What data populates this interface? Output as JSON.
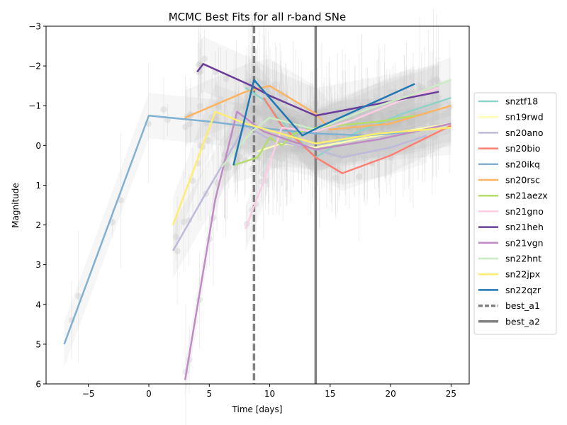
{
  "chart_data": {
    "type": "line",
    "title": "MCMC Best Fits for all r-band SNe",
    "xlabel": "Time [days]",
    "ylabel": "Magnitude",
    "xlim": [
      -8.5,
      26.5
    ],
    "ylim": [
      6,
      -3
    ],
    "y_inverted": true,
    "grid": false,
    "legend_position": "right-outside",
    "x_ticks": [
      -5,
      0,
      5,
      10,
      15,
      20,
      25
    ],
    "y_ticks": [
      -3,
      -2,
      -1,
      0,
      1,
      2,
      3,
      4,
      5,
      6
    ],
    "series": [
      {
        "name": "snztf18",
        "color": "#8dd3c7",
        "x": [
          8,
          9.5,
          11,
          13.8,
          17,
          21,
          25
        ],
        "y": [
          -1.45,
          -1.15,
          -0.6,
          0.3,
          -0.3,
          -0.8,
          -1.2
        ]
      },
      {
        "name": "sn19rwd",
        "color": "#ffffb3",
        "x": [
          9,
          11,
          13.8,
          19,
          25
        ],
        "y": [
          0.15,
          -0.05,
          0.05,
          -0.25,
          -0.55
        ]
      },
      {
        "name": "sn20ano",
        "color": "#bebada",
        "x": [
          2,
          5,
          8,
          10,
          13.8,
          16,
          20,
          23
        ],
        "y": [
          2.65,
          1.05,
          -0.5,
          -0.15,
          0.1,
          0.3,
          0.05,
          -0.25
        ]
      },
      {
        "name": "sn20bio",
        "color": "#fb8072",
        "x": [
          9.5,
          11,
          13.8,
          16,
          20,
          25
        ],
        "y": [
          -1.2,
          -0.5,
          0.3,
          0.7,
          0.25,
          -0.5
        ]
      },
      {
        "name": "sn20ikq",
        "color": "#80b1d3",
        "x": [
          -7,
          0,
          5,
          9,
          12,
          13.8,
          18,
          22
        ],
        "y": [
          5.0,
          -0.75,
          -0.6,
          -0.45,
          -0.35,
          -0.3,
          -0.25,
          -0.35
        ]
      },
      {
        "name": "sn20rsc",
        "color": "#fdb462",
        "x": [
          3,
          8,
          10,
          13.8,
          15,
          20,
          25
        ],
        "y": [
          -0.7,
          -1.35,
          -1.5,
          -0.8,
          -0.4,
          -0.55,
          -1.0
        ]
      },
      {
        "name": "sn21aezx",
        "color": "#b3de69",
        "x": [
          7,
          9,
          10,
          11,
          12,
          13.8,
          19,
          22
        ],
        "y": [
          0.5,
          0.3,
          -0.2,
          0.0,
          -0.3,
          -0.45,
          -0.6,
          -0.75
        ]
      },
      {
        "name": "sn21gno",
        "color": "#fccde5",
        "x": [
          8,
          9.5,
          11,
          13.8,
          17,
          21,
          24
        ],
        "y": [
          2.1,
          0.9,
          -0.45,
          -0.35,
          -0.65,
          -1.15,
          -1.45
        ]
      },
      {
        "name": "sn21heh",
        "color": "#6a3d9a",
        "x": [
          4,
          4.5,
          8.5,
          10,
          13.8,
          19,
          24
        ],
        "y": [
          -1.85,
          -2.05,
          -1.5,
          -1.25,
          -0.75,
          -1.05,
          -1.35
        ]
      },
      {
        "name": "sn21vgn",
        "color": "#c08bc5",
        "x": [
          3,
          5.5,
          7.3,
          9.5,
          13.8,
          19,
          25
        ],
        "y": [
          5.9,
          1.35,
          -0.85,
          -0.35,
          0.1,
          -0.15,
          -0.55
        ]
      },
      {
        "name": "sn22hnt",
        "color": "#ccebc5",
        "x": [
          6,
          8.5,
          10,
          13.8,
          18,
          22,
          25
        ],
        "y": [
          0.55,
          -0.35,
          -0.7,
          -0.4,
          -0.9,
          -1.3,
          -1.65
        ]
      },
      {
        "name": "sn22jpx",
        "color": "#ffed6f",
        "x": [
          2,
          5.5,
          8,
          13.8,
          19,
          25
        ],
        "y": [
          2.0,
          -0.85,
          -0.55,
          -0.05,
          -0.3,
          -0.45
        ]
      },
      {
        "name": "sn22qzr",
        "color": "#1f77b4",
        "x": [
          7,
          8.7,
          12.7,
          14,
          22
        ],
        "y": [
          0.5,
          -1.65,
          -0.25,
          -0.45,
          -1.55
        ]
      }
    ],
    "vertical_lines": [
      {
        "name": "best_a1",
        "x": 8.7,
        "style": "dashed",
        "color": "#808080"
      },
      {
        "name": "best_a2",
        "x": 13.8,
        "style": "solid",
        "color": "#808080"
      }
    ]
  }
}
